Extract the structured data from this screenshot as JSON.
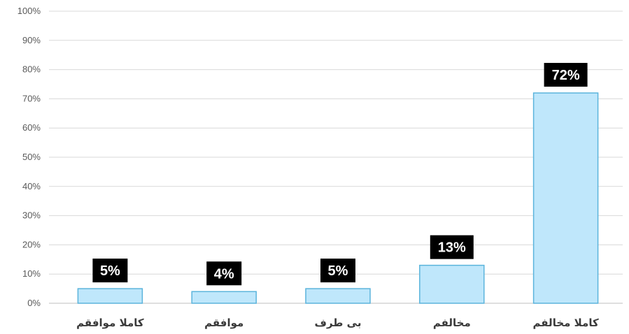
{
  "chart_data": {
    "type": "bar",
    "categories": [
      "کاملا موافقم",
      "موافقم",
      "بی طرف",
      "مخالفم",
      "کاملا مخالفم"
    ],
    "values": [
      5,
      4,
      5,
      13,
      72
    ],
    "data_labels": [
      "5%",
      "4%",
      "5%",
      "13%",
      "72%"
    ],
    "y_ticks": [
      "0%",
      "10%",
      "20%",
      "30%",
      "40%",
      "50%",
      "60%",
      "70%",
      "80%",
      "90%",
      "100%"
    ],
    "ylim": [
      0,
      100
    ],
    "grid": true,
    "legend": "none",
    "colors": {
      "bar_fill": "#bfe7fb",
      "bar_stroke": "#5bb4dc",
      "label_bg": "#000000",
      "label_text": "#ffffff",
      "grid": "#d9d9d9"
    }
  }
}
